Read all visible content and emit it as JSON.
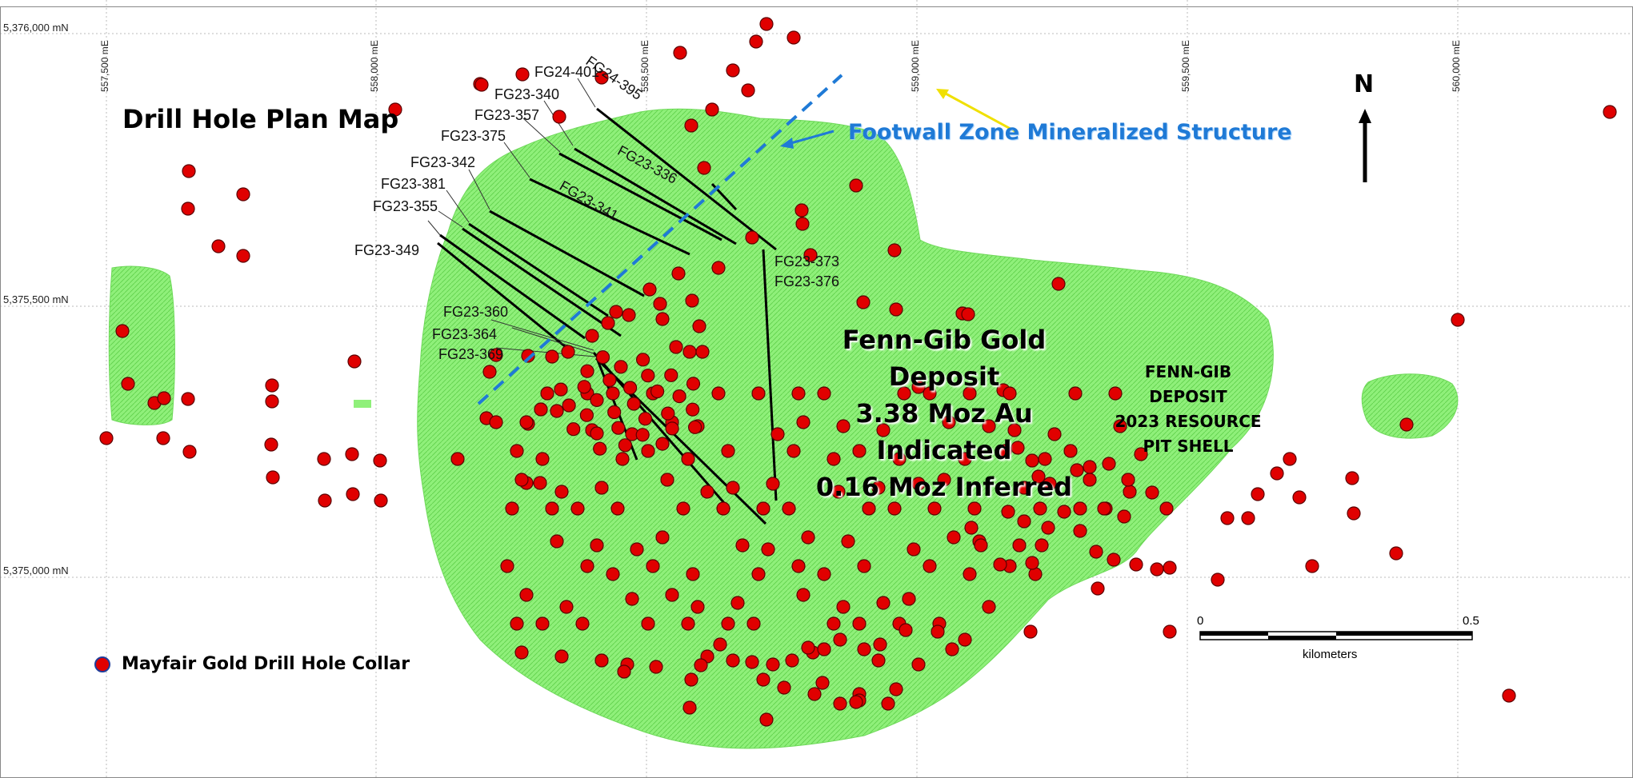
{
  "title": "Drill Hole Plan Map",
  "structure_label": "Footwall Zone Mineralized Structure",
  "deposit": {
    "name": "Fenn-Gib Gold Deposit",
    "indicated": "3.38 Moz Au Indicated",
    "inferred": "0.16 Moz Inferred"
  },
  "pit_shell": {
    "line1": "FENN-GIB DEPOSIT",
    "line2": "2023 RESOURCE",
    "line3": "PIT SHELL"
  },
  "north_label": "N",
  "legend": {
    "label": "Mayfair Gold Drill Hole Collar"
  },
  "grid": {
    "eastings": [
      "557,500 mE",
      "558,000 mE",
      "558,500 mE",
      "559,000 mE",
      "559,500 mE",
      "560,000 mE"
    ],
    "northings": [
      "5,376,000 mN",
      "5,375,500 mN",
      "5,375,000 mN"
    ]
  },
  "scale_bar": {
    "start": "0",
    "end": "0.5",
    "unit": "kilometers"
  },
  "drill_hole_labels": [
    "FG24-401",
    "FG24-395",
    "FG23-340",
    "FG23-357",
    "FG23-375",
    "FG23-342",
    "FG23-381",
    "FG23-355",
    "FG23-349",
    "FG23-336",
    "FG23-341",
    "FG23-373",
    "FG23-376",
    "FG23-360",
    "FG23-364",
    "FG23-369"
  ],
  "colors": {
    "pit_shell": "#8ff07a",
    "collar": "#e00000",
    "collar_outline": "#5a0000",
    "structure": "#1f7ad6",
    "arrow": "#f0e000"
  }
}
